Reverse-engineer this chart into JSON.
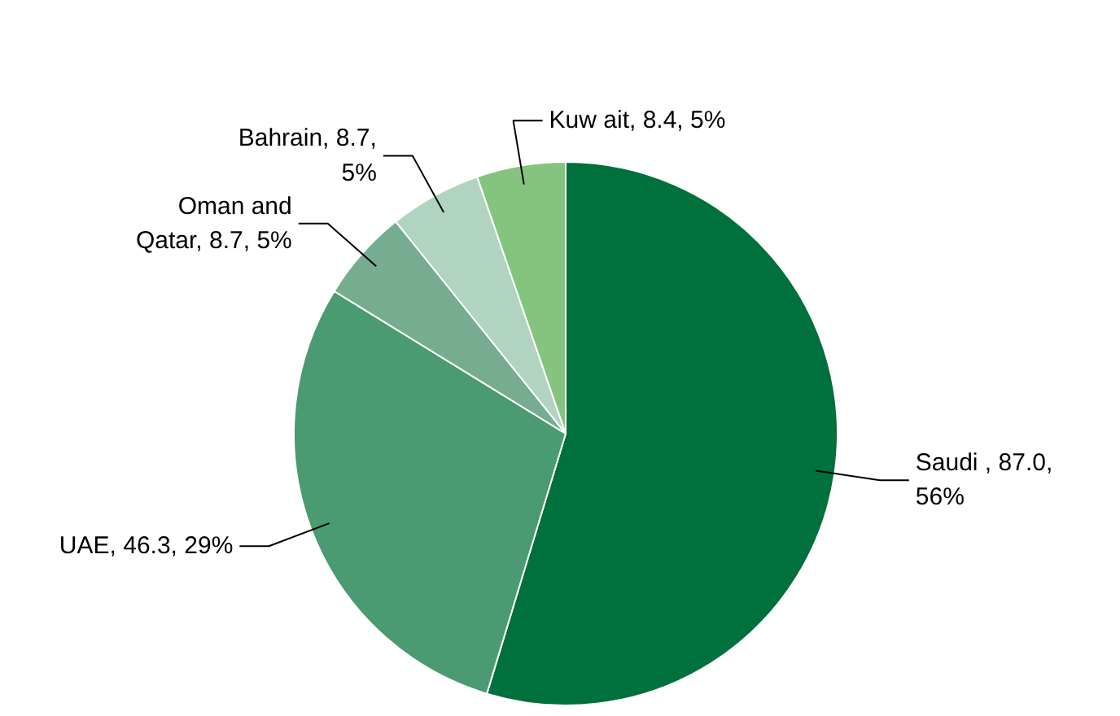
{
  "chart_data": {
    "type": "pie",
    "categories": [
      "Saudi ",
      "UAE",
      "Oman and\nQatar",
      "Bahrain",
      "Kuw ait"
    ],
    "values": [
      87.0,
      46.3,
      8.7,
      8.7,
      8.4
    ],
    "colors": [
      "#00703c",
      "#4a9a72",
      "#76ad91",
      "#b0d4c0",
      "#84c47f"
    ],
    "value_labels": [
      "87.0,\n56%",
      "46.3, 29%",
      "8.7, 5%",
      "8.7,\n5%",
      "8.4, 5%"
    ]
  }
}
